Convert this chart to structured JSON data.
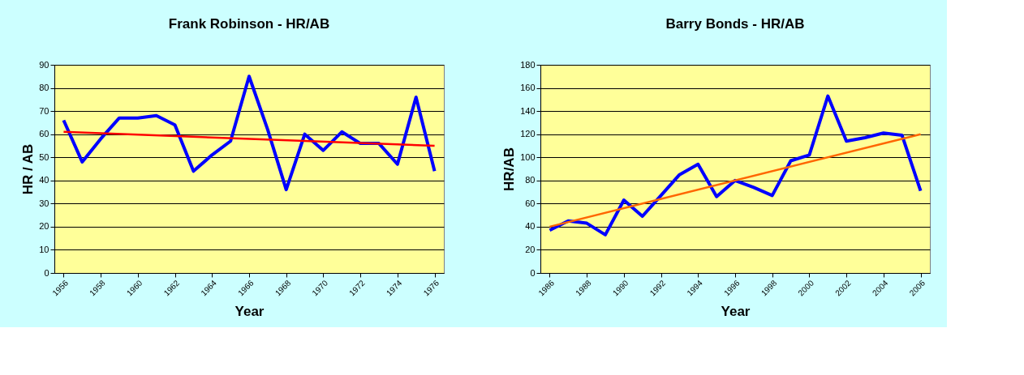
{
  "chart_data": [
    {
      "type": "line",
      "title": "Frank Robinson - HR/AB",
      "xlabel": "Year",
      "ylabel": "HR / AB",
      "x": [
        1956,
        1957,
        1958,
        1959,
        1960,
        1961,
        1962,
        1963,
        1964,
        1965,
        1966,
        1967,
        1968,
        1969,
        1970,
        1971,
        1972,
        1973,
        1974,
        1975,
        1976
      ],
      "series": [
        {
          "color": "#0000ff",
          "values": [
            66,
            48,
            58,
            67,
            67,
            68,
            64,
            44,
            51,
            57,
            85,
            62,
            36,
            60,
            53,
            61,
            56,
            56,
            47,
            76,
            44
          ]
        },
        {
          "color": "#ff0000",
          "x": [
            1956,
            1976
          ],
          "values": [
            61,
            55
          ]
        }
      ],
      "xlim": [
        1955.5,
        1976.5
      ],
      "xticks": [
        1956,
        1958,
        1960,
        1962,
        1964,
        1966,
        1968,
        1970,
        1972,
        1974,
        1976
      ],
      "ylim": [
        0,
        90
      ],
      "yticks": [
        0,
        10,
        20,
        30,
        40,
        50,
        60,
        70,
        80,
        90
      ],
      "grid": "y",
      "legend": false,
      "line_style": "solid",
      "marker": "none"
    },
    {
      "type": "line",
      "title": "Barry Bonds - HR/AB",
      "xlabel": "Year",
      "ylabel": "HR/AB",
      "x": [
        1986,
        1987,
        1988,
        1989,
        1990,
        1991,
        1992,
        1993,
        1994,
        1995,
        1996,
        1997,
        1998,
        1999,
        2000,
        2001,
        2002,
        2003,
        2004,
        2005,
        2006
      ],
      "series": [
        {
          "color": "#0000ff",
          "values": [
            37,
            45,
            43,
            33,
            63,
            49,
            67,
            85,
            94,
            66,
            80,
            74,
            67,
            97,
            102,
            153,
            114,
            117,
            121,
            119,
            71
          ]
        },
        {
          "color": "#ff6600",
          "x": [
            1986,
            2006
          ],
          "values": [
            40,
            120
          ]
        }
      ],
      "xlim": [
        1985.5,
        2006.5
      ],
      "xticks": [
        1986,
        1988,
        1990,
        1992,
        1994,
        1996,
        1998,
        2000,
        2002,
        2004,
        2006
      ],
      "ylim": [
        0,
        180
      ],
      "yticks": [
        0,
        20,
        40,
        60,
        80,
        100,
        120,
        140,
        160,
        180
      ],
      "grid": "y",
      "legend": false,
      "line_style": "solid",
      "marker": "none"
    }
  ]
}
